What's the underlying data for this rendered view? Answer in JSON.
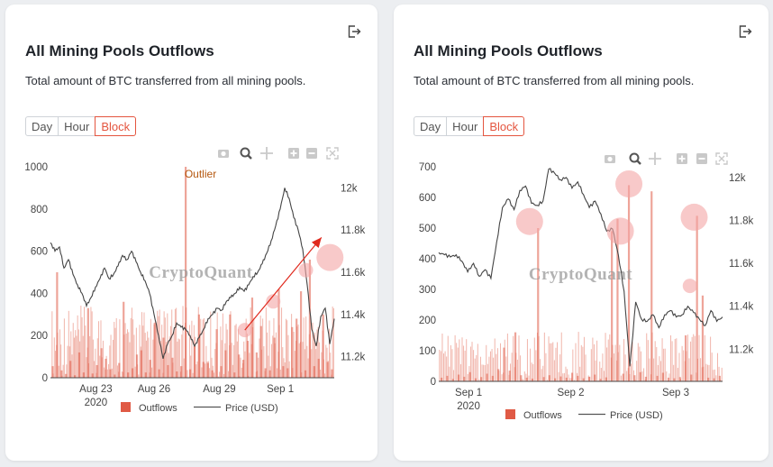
{
  "cards": [
    {
      "title": "All Mining Pools Outflows",
      "description": "Total amount of BTC transferred from all mining pools.",
      "buttons": [
        "Day",
        "Hour",
        "Block"
      ],
      "active_button": "Block",
      "export_icon": "export-icon",
      "modebar_icons": [
        "camera-icon",
        "zoom-icon",
        "pan-icon",
        "zoom-in-icon",
        "zoom-out-icon",
        "autoscale-icon"
      ],
      "watermark": "CryptoQuant",
      "annotation": "Outlier",
      "legend": [
        {
          "label": "Outflows",
          "color": "#e05a45",
          "icon": "square"
        },
        {
          "label": "Price (USD)",
          "color": "#555555",
          "icon": "line"
        }
      ],
      "chart_data": {
        "type": "bar",
        "x_tick_labels": [
          "Aug 23",
          "Aug 26",
          "Aug 29",
          "Sep 1"
        ],
        "x_sub_label": "2020",
        "y_tick_labels": [
          "0",
          "200",
          "400",
          "600",
          "800",
          "1000"
        ],
        "y2_tick_labels": [
          "11.2k",
          "11.4k",
          "11.6k",
          "11.8k",
          "12k"
        ],
        "ylim": [
          0,
          1000
        ],
        "y2lim": [
          11100,
          12100
        ],
        "series": [
          {
            "name": "Outflows",
            "type": "bar",
            "color": "#e05a45",
            "values": [
              55,
              500,
              35,
              18,
              80,
              12,
              120,
              25,
              330,
              20,
              60,
              140,
              90,
              40,
              15,
              70,
              360,
              25,
              45,
              110,
              130,
              25,
              85,
              260,
              40,
              190,
              60,
              95,
              30,
              55,
              1000,
              40,
              150,
              300,
              75,
              70,
              35,
              230,
              55,
              130,
              300,
              25,
              110,
              85,
              175,
              380,
              120,
              245,
              45,
              35,
              190,
              420,
              55,
              45,
              240,
              280,
              410,
              35,
              560,
              55,
              90,
              300,
              75,
              40
            ]
          },
          {
            "name": "Price (USD)",
            "type": "line",
            "color": "#444444",
            "values": [
              11740,
              11700,
              11720,
              11620,
              11660,
              11590,
              11540,
              11500,
              11440,
              11480,
              11530,
              11570,
              11620,
              11570,
              11590,
              11630,
              11680,
              11660,
              11700,
              11650,
              11600,
              11560,
              11500,
              11400,
              11300,
              11190,
              11260,
              11300,
              11360,
              11340,
              11330,
              11300,
              11250,
              11290,
              11330,
              11380,
              11400,
              11430,
              11420,
              11460,
              11480,
              11500,
              11530,
              11510,
              11540,
              11580,
              11600,
              11640,
              11690,
              11750,
              11820,
              11900,
              12000,
              11950,
              11860,
              11800,
              11710,
              11540,
              11330,
              11250,
              11390,
              11430,
              11260,
              11380
            ]
          }
        ],
        "markers": [
          {
            "x": 0.685,
            "y": 11326,
            "size": "small"
          },
          {
            "x": 0.785,
            "y": 11462,
            "size": "small"
          },
          {
            "x": 0.9,
            "y": 11610,
            "size": "small"
          },
          {
            "x": 0.985,
            "y": 11670,
            "size": "large"
          }
        ]
      }
    },
    {
      "title": "All Mining Pools Outflows",
      "description": "Total amount of BTC transferred from all mining pools.",
      "buttons": [
        "Day",
        "Hour",
        "Block"
      ],
      "active_button": "Block",
      "export_icon": "export-icon",
      "modebar_icons": [
        "camera-icon",
        "zoom-icon",
        "pan-icon",
        "zoom-in-icon",
        "zoom-out-icon",
        "autoscale-icon"
      ],
      "watermark": "CryptoQuant",
      "annotation": "",
      "legend": [
        {
          "label": "Outflows",
          "color": "#e05a45",
          "icon": "square"
        },
        {
          "label": "Price (USD)",
          "color": "#555555",
          "icon": "line"
        }
      ],
      "chart_data": {
        "type": "bar",
        "x_tick_labels": [
          "Sep 1",
          "Sep 2",
          "Sep 3"
        ],
        "x_sub_label": "2020",
        "y_tick_labels": [
          "0",
          "100",
          "200",
          "300",
          "400",
          "500",
          "600",
          "700"
        ],
        "y2_tick_labels": [
          "11.2k",
          "11.4k",
          "11.6k",
          "11.8k",
          "12k"
        ],
        "ylim": [
          0,
          700
        ],
        "y2lim": [
          11050,
          12050
        ],
        "series": [
          {
            "name": "Outflows",
            "type": "bar",
            "color": "#e05a45",
            "values": [
              12,
              18,
              8,
              22,
              15,
              30,
              10,
              14,
              25,
              18,
              40,
              110,
              35,
              160,
              20,
              12,
              9,
              500,
              14,
              20,
              10,
              16,
              12,
              28,
              18,
              10,
              15,
              22,
              8,
              13,
              490,
              530,
              25,
              640,
              20,
              30,
              15,
              620,
              18,
              28,
              12,
              10,
              14,
              150,
              22,
              540,
              280,
              12,
              10,
              18
            ]
          },
          {
            "name": "Price (USD)",
            "type": "line",
            "color": "#444444",
            "values": [
              11650,
              11640,
              11630,
              11640,
              11610,
              11560,
              11600,
              11540,
              11570,
              11530,
              11700,
              11860,
              11900,
              11850,
              11940,
              11960,
              11880,
              11870,
              11890,
              12040,
              12020,
              11990,
              12000,
              11950,
              11980,
              11920,
              11860,
              11890,
              11830,
              11750,
              11760,
              11640,
              11470,
              11120,
              11420,
              11340,
              11330,
              11360,
              11300,
              11360,
              11380,
              11350,
              11360,
              11400,
              11370,
              11340,
              11310,
              11380,
              11330,
              11350
            ]
          }
        ],
        "markers": [
          {
            "x": 0.32,
            "y": 11795,
            "size": "large"
          },
          {
            "x": 0.64,
            "y": 11750,
            "size": "large"
          },
          {
            "x": 0.67,
            "y": 11970,
            "size": "large"
          },
          {
            "x": 0.9,
            "y": 11815,
            "size": "large"
          },
          {
            "x": 0.885,
            "y": 11495,
            "size": "small"
          }
        ]
      }
    }
  ]
}
